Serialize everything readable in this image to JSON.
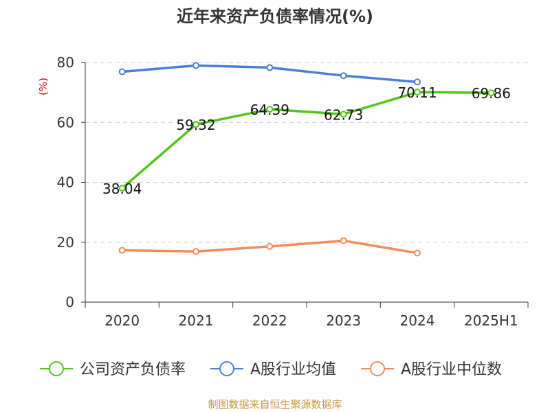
{
  "chart_data": {
    "type": "line",
    "title": "近年来资产负债率情况(%)",
    "ylabel": "(%)",
    "xlabel": "",
    "categories": [
      "2020",
      "2021",
      "2022",
      "2023",
      "2024",
      "2025H1"
    ],
    "ylim": [
      0,
      80
    ],
    "yticks": [
      "0",
      "20",
      "40",
      "60",
      "80"
    ],
    "grid": true,
    "legend_position": "bottom",
    "series": [
      {
        "name": "公司资产负债率",
        "color": "#52c41a",
        "values": [
          38.04,
          59.32,
          64.39,
          62.73,
          70.11,
          69.86
        ],
        "labels": [
          "38.04",
          "59.32",
          "64.39",
          "62.73",
          "70.11",
          "69.86"
        ]
      },
      {
        "name": "A股行业均值",
        "color": "#4a7fd8",
        "values": [
          76.9,
          79.0,
          78.3,
          75.6,
          73.5,
          null
        ]
      },
      {
        "name": "A股行业中位数",
        "color": "#f28c5c",
        "values": [
          17.3,
          16.9,
          18.6,
          20.5,
          16.4,
          null
        ]
      }
    ],
    "source": "制图数据来自恒生聚源数据库",
    "ylabel_color": "#cc0000",
    "source_color": "#c8963c"
  }
}
